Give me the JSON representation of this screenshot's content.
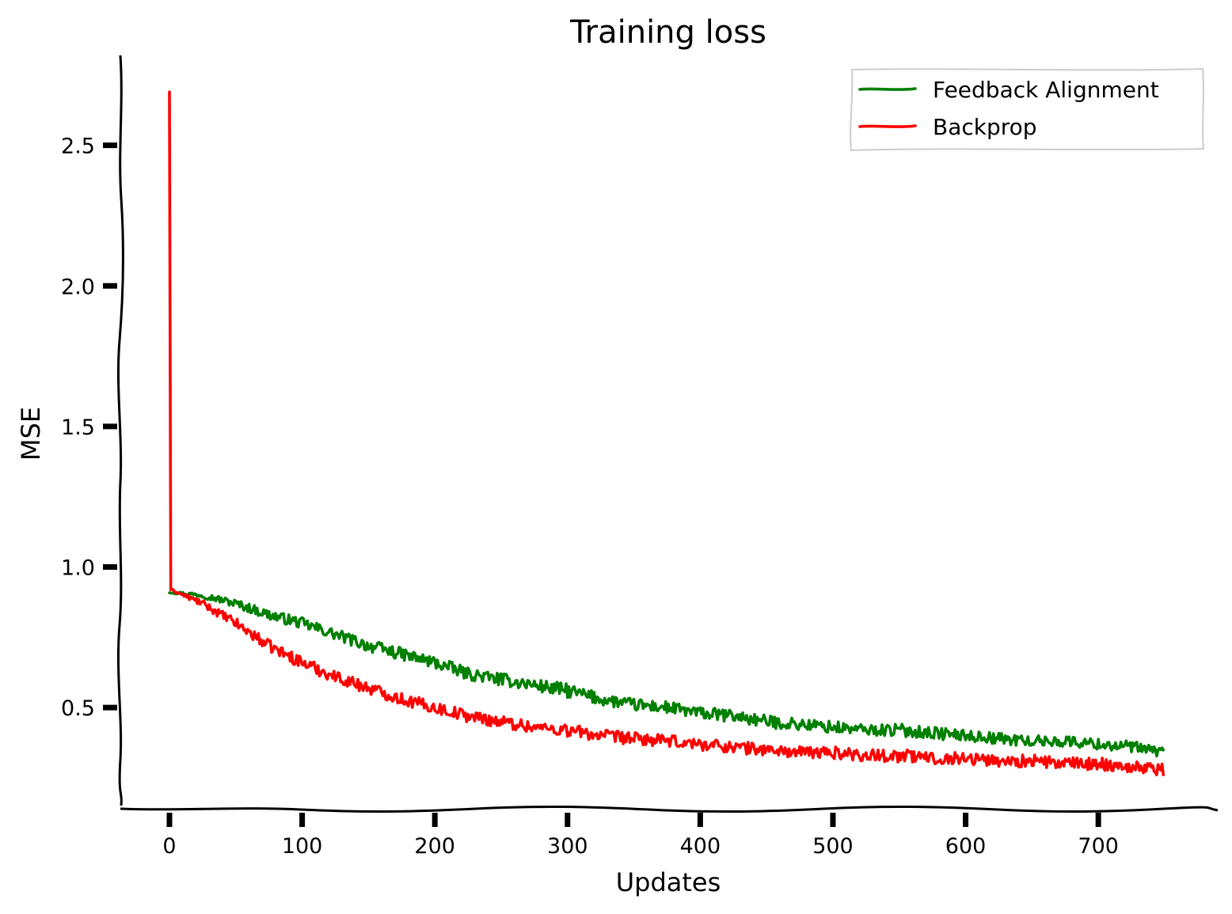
{
  "chart_data": {
    "type": "line",
    "title": "Training loss",
    "xlabel": "Updates",
    "ylabel": "MSE",
    "xlim": [
      -37,
      790
    ],
    "ylim": [
      0.14,
      2.82
    ],
    "x_ticks": [
      0,
      100,
      200,
      300,
      400,
      500,
      600,
      700
    ],
    "x_tick_labels": [
      "0",
      "100",
      "200",
      "300",
      "400",
      "500",
      "600",
      "700"
    ],
    "y_ticks": [
      0.5,
      1.0,
      1.5,
      2.0,
      2.5
    ],
    "y_tick_labels": [
      "0.5",
      "1.0",
      "1.5",
      "2.0",
      "2.5"
    ],
    "grid": false,
    "legend_position": "top-right",
    "n_updates": 750,
    "series": [
      {
        "name": "Feedback Alignment",
        "color": "#008000",
        "x": [
          0,
          25,
          50,
          75,
          100,
          125,
          150,
          175,
          200,
          225,
          250,
          275,
          300,
          325,
          350,
          375,
          400,
          425,
          450,
          475,
          500,
          525,
          550,
          575,
          600,
          625,
          650,
          675,
          700,
          725,
          750
        ],
        "y": [
          0.91,
          0.9,
          0.87,
          0.83,
          0.8,
          0.76,
          0.72,
          0.69,
          0.66,
          0.62,
          0.6,
          0.58,
          0.56,
          0.53,
          0.51,
          0.5,
          0.48,
          0.47,
          0.45,
          0.44,
          0.43,
          0.42,
          0.42,
          0.41,
          0.4,
          0.39,
          0.38,
          0.38,
          0.37,
          0.36,
          0.34
        ],
        "noise": [
          0.003,
          0.01,
          0.015,
          0.018,
          0.02,
          0.02,
          0.022,
          0.022,
          0.022,
          0.022,
          0.022,
          0.022,
          0.025,
          0.022,
          0.022,
          0.022,
          0.022,
          0.022,
          0.022,
          0.022,
          0.022,
          0.02,
          0.022,
          0.022,
          0.02,
          0.02,
          0.02,
          0.02,
          0.02,
          0.02,
          0.02
        ]
      },
      {
        "name": "Backprop",
        "color": "#ff0000",
        "x": [
          0,
          1,
          25,
          50,
          75,
          100,
          125,
          150,
          175,
          200,
          225,
          250,
          275,
          300,
          325,
          350,
          375,
          400,
          425,
          450,
          475,
          500,
          525,
          550,
          575,
          600,
          625,
          650,
          675,
          700,
          725,
          750
        ],
        "y": [
          2.69,
          0.92,
          0.87,
          0.8,
          0.72,
          0.66,
          0.61,
          0.57,
          0.53,
          0.5,
          0.47,
          0.45,
          0.43,
          0.42,
          0.4,
          0.39,
          0.38,
          0.37,
          0.36,
          0.35,
          0.34,
          0.34,
          0.33,
          0.33,
          0.32,
          0.32,
          0.31,
          0.31,
          0.3,
          0.3,
          0.29,
          0.28
        ],
        "noise": [
          0.0,
          0.003,
          0.012,
          0.018,
          0.02,
          0.022,
          0.022,
          0.022,
          0.022,
          0.022,
          0.022,
          0.022,
          0.022,
          0.025,
          0.022,
          0.022,
          0.022,
          0.022,
          0.022,
          0.022,
          0.022,
          0.022,
          0.022,
          0.025,
          0.022,
          0.022,
          0.022,
          0.022,
          0.022,
          0.022,
          0.022,
          0.022
        ]
      }
    ]
  }
}
